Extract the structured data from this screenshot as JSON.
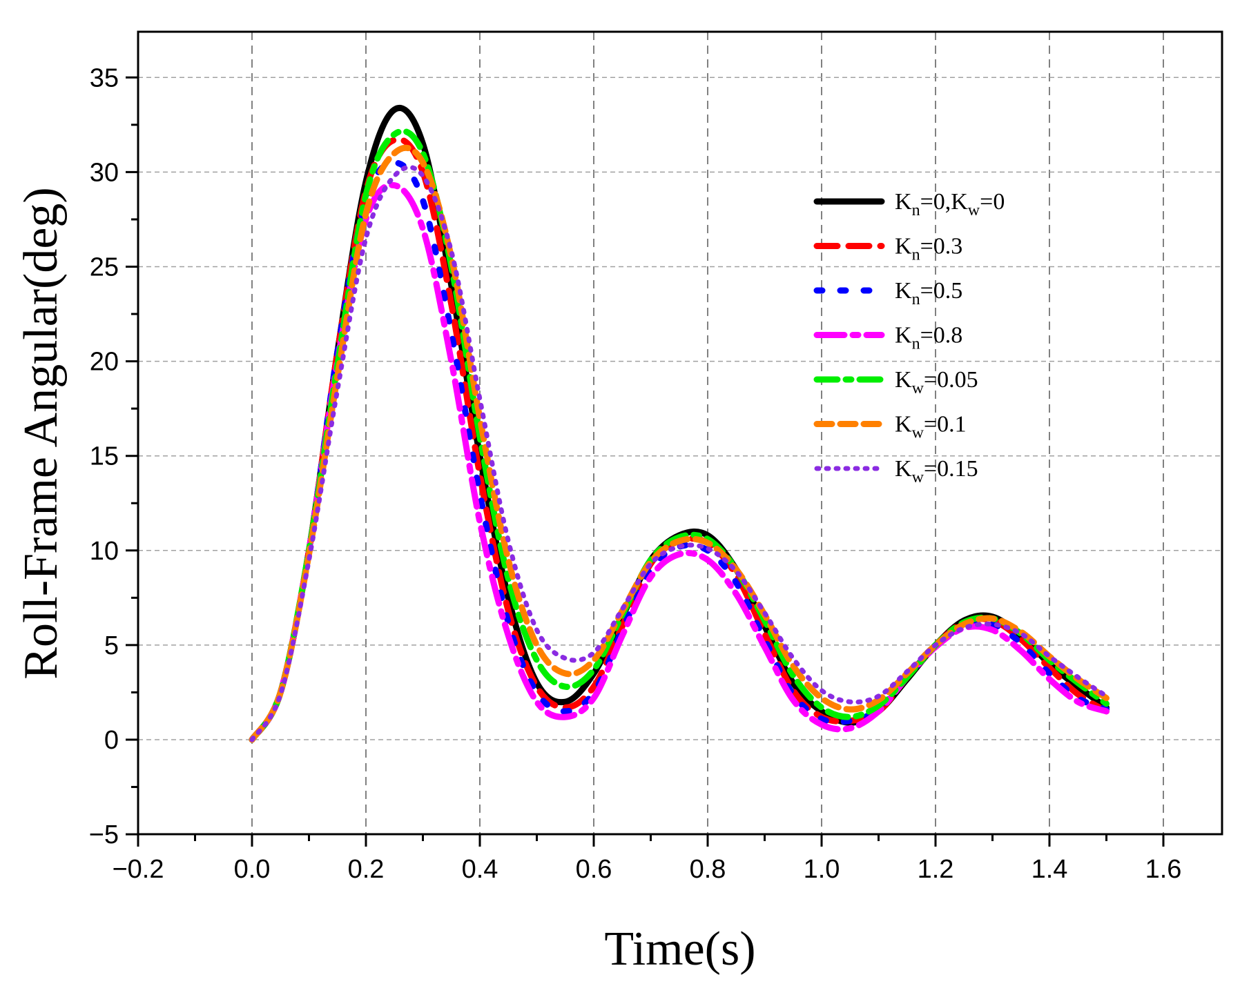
{
  "chart_data": {
    "type": "line",
    "title": "",
    "xlabel": "Time(s)",
    "ylabel": "Roll-Frame Angular(deg)",
    "xlim": [
      -0.2,
      1.7
    ],
    "ylim": [
      -5,
      37.5
    ],
    "xticks": [
      -0.2,
      0.0,
      0.2,
      0.4,
      0.6,
      0.8,
      1.0,
      1.2,
      1.4,
      1.6
    ],
    "xtick_labels": [
      "−0.2",
      "0.0",
      "0.2",
      "0.4",
      "0.6",
      "0.8",
      "1.0",
      "1.2",
      "1.4",
      "1.6"
    ],
    "yticks": [
      -5,
      0,
      5,
      10,
      15,
      20,
      25,
      30,
      35
    ],
    "ytick_labels": [
      "−5",
      "0",
      "5",
      "10",
      "15",
      "20",
      "25",
      "30",
      "35"
    ],
    "grid": true,
    "legend_position": "top-right",
    "x": [
      0.0,
      0.05,
      0.1,
      0.15,
      0.2,
      0.25,
      0.3,
      0.35,
      0.4,
      0.45,
      0.5,
      0.55,
      0.6,
      0.65,
      0.7,
      0.75,
      0.8,
      0.85,
      0.9,
      0.95,
      1.0,
      1.05,
      1.1,
      1.15,
      1.2,
      1.25,
      1.3,
      1.35,
      1.4,
      1.45,
      1.5
    ],
    "series": [
      {
        "name": "Kn=0,Kw=0",
        "label_main": "K",
        "label_sub1": "n",
        "label_mid": "=0,K",
        "label_sub2": "w",
        "label_end": "=0",
        "color": "#000000",
        "values": [
          0,
          2.5,
          10,
          20.5,
          29.5,
          33.3,
          31.5,
          24,
          15,
          7.5,
          3,
          2,
          3.5,
          6.5,
          9.5,
          10.8,
          10.8,
          9,
          6,
          3,
          1.5,
          0.9,
          1.5,
          3.2,
          5,
          6.3,
          6.5,
          5.5,
          4,
          2.8,
          1.7
        ]
      },
      {
        "name": "Kn=0.3",
        "label_main": "K",
        "label_sub1": "n",
        "label_mid": "=0.3",
        "label_sub2": "",
        "label_end": "",
        "color": "#ff0000",
        "values": [
          0,
          2.5,
          10,
          20.5,
          29,
          31.7,
          30,
          23,
          14,
          6.8,
          2.8,
          1.7,
          2.8,
          6,
          9.3,
          10.5,
          10.4,
          8.7,
          5.6,
          2.6,
          1.2,
          1,
          1.5,
          3.3,
          5,
          6.2,
          6.3,
          5.3,
          3.8,
          2.4,
          1.5
        ]
      },
      {
        "name": "Kn=0.5",
        "label_main": "K",
        "label_sub1": "n",
        "label_mid": "=0.5",
        "label_sub2": "",
        "label_end": "",
        "color": "#0000ff",
        "values": [
          0,
          2.5,
          10,
          20.5,
          28.5,
          30.5,
          28.5,
          21.5,
          13,
          6.2,
          2.5,
          1.5,
          2.5,
          5.8,
          9,
          10.2,
          10,
          8.3,
          5.3,
          2.4,
          1.1,
          1,
          1.6,
          3.3,
          5,
          6.1,
          6.1,
          5.1,
          3.5,
          2.2,
          1.6
        ]
      },
      {
        "name": "Kn=0.8",
        "label_main": "K",
        "label_sub1": "n",
        "label_mid": "=0.8",
        "label_sub2": "",
        "label_end": "",
        "color": "#ff00ff",
        "values": [
          0,
          2.5,
          10,
          20,
          27.5,
          29.3,
          27,
          20,
          11.5,
          5.5,
          2,
          1.2,
          2.2,
          5.5,
          8.6,
          9.8,
          9.5,
          7.7,
          4.9,
          2.1,
          0.8,
          0.6,
          1.5,
          3.3,
          4.9,
          5.9,
          5.8,
          4.7,
          3.2,
          2,
          1.5
        ]
      },
      {
        "name": "Kw=0.05",
        "label_main": "K",
        "label_sub1": "w",
        "label_mid": "=0.05",
        "label_sub2": "",
        "label_end": "",
        "color": "#00ee00",
        "values": [
          0,
          2.5,
          10,
          19.8,
          28.8,
          32,
          31,
          25,
          16,
          8.5,
          4.2,
          2.8,
          3.7,
          6.6,
          9.5,
          10.7,
          10.6,
          9,
          6.3,
          3.4,
          1.7,
          1.2,
          1.8,
          3.3,
          5,
          6.2,
          6.4,
          5.6,
          4.2,
          3,
          1.9
        ]
      },
      {
        "name": "Kw=0.1",
        "label_main": "K",
        "label_sub1": "w",
        "label_mid": "=0.1",
        "label_sub2": "",
        "label_end": "",
        "color": "#ff8000",
        "values": [
          0,
          2.5,
          9.8,
          19.2,
          27.8,
          31,
          30.5,
          25.5,
          17,
          9.5,
          5,
          3.5,
          4.2,
          6.8,
          9.4,
          10.5,
          10.4,
          9,
          6.6,
          3.9,
          2.2,
          1.6,
          2.1,
          3.5,
          5,
          6.1,
          6.4,
          5.7,
          4.4,
          3.2,
          2.2
        ]
      },
      {
        "name": "Kw=0.15",
        "label_main": "K",
        "label_sub1": "w",
        "label_mid": "=0.15",
        "label_sub2": "",
        "label_end": "",
        "color": "#8a2be2",
        "values": [
          0,
          2.4,
          9.5,
          18.5,
          26.5,
          29.8,
          29.8,
          25.8,
          18,
          10.5,
          5.8,
          4.3,
          4.6,
          6.9,
          9.3,
          10.2,
          10.1,
          8.9,
          6.7,
          4.3,
          2.6,
          2,
          2.3,
          3.6,
          5,
          5.9,
          6.1,
          5.6,
          4.4,
          3.3,
          2.3
        ]
      }
    ]
  }
}
